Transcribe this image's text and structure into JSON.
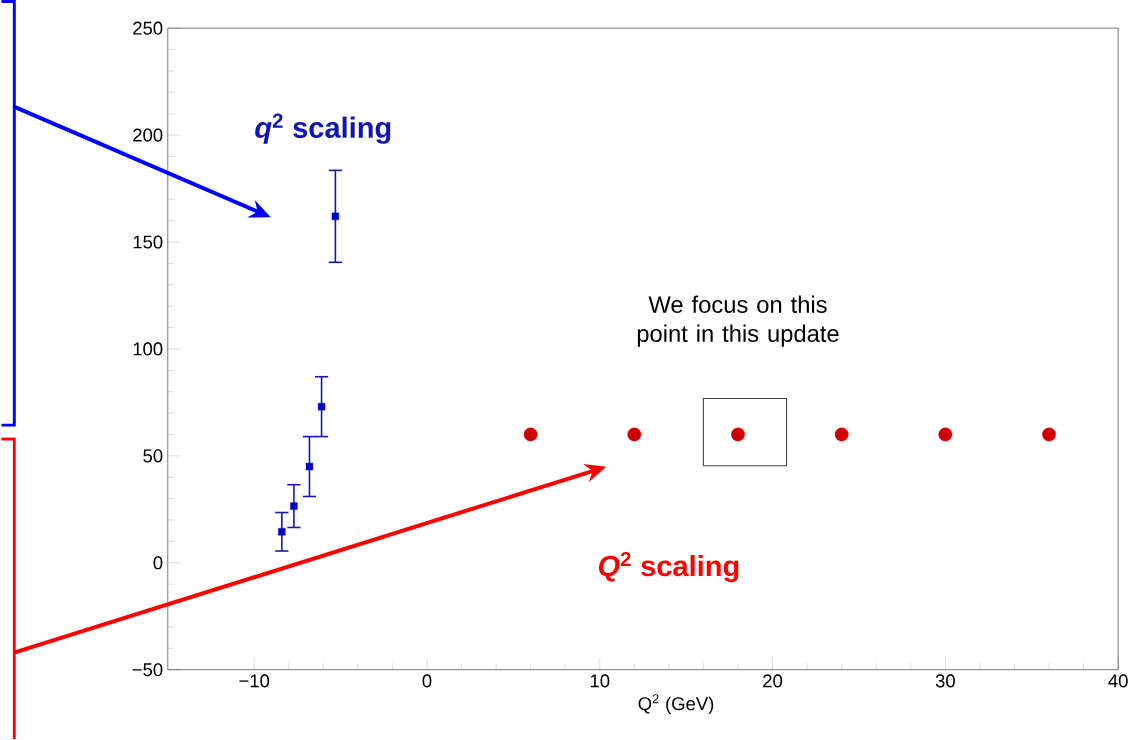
{
  "chart_data": {
    "type": "scatter",
    "xlabel": "Q$^{2}$ (GeV)",
    "xlim": [
      -15,
      40
    ],
    "ylim": [
      -50,
      250
    ],
    "xticks": [
      {
        "value": -10,
        "label": "−10"
      },
      0,
      10,
      20,
      30,
      40
    ],
    "yticks": [
      {
        "value": -50,
        "label": "−50"
      },
      0,
      50,
      100,
      150,
      200,
      250
    ],
    "grid": false,
    "series": [
      {
        "color": "#1414b4",
        "marker": "square",
        "x": [
          -8.4,
          -7.7,
          -6.8,
          -6.1,
          -5.3
        ],
        "values": [
          14.5,
          26.5,
          45,
          73,
          162
        ],
        "errors": [
          9,
          10,
          14,
          14,
          21.5
        ]
      },
      {
        "color": "#ff0000",
        "marker": "circle",
        "x": [
          6,
          12,
          18,
          24,
          30,
          36
        ],
        "values": [
          60,
          60,
          60,
          60,
          60,
          60
        ]
      }
    ],
    "annotations": [
      "*q*$^{2}$ scaling",
      "*Q*$^{2}$ scaling",
      "We focus on this point in this update"
    ]
  }
}
